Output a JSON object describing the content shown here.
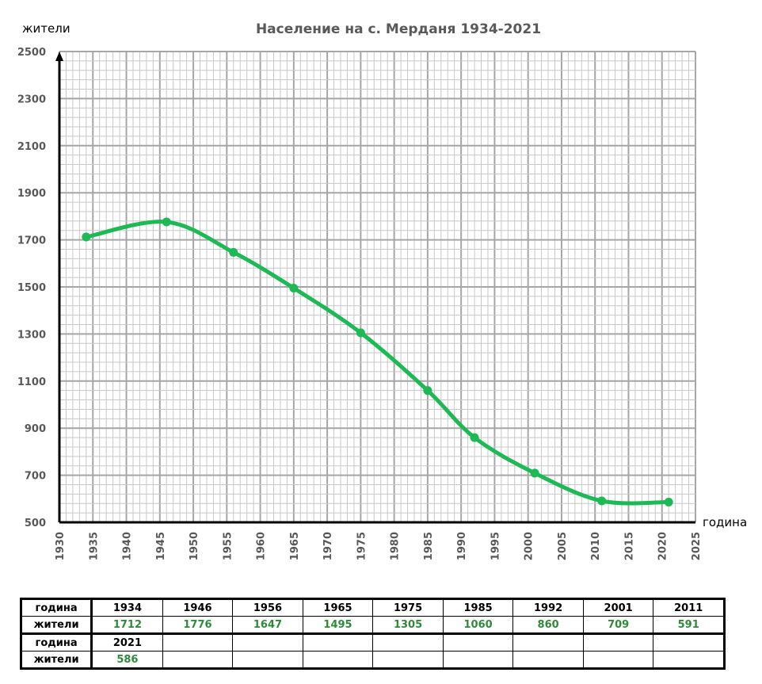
{
  "chart_data": {
    "type": "line",
    "title": "Население на с. Мерданя 1934-2021",
    "xlabel": "година",
    "ylabel": "жители",
    "xlim": [
      1930,
      2025
    ],
    "ylim": [
      500,
      2500
    ],
    "xticks": [
      1930,
      1935,
      1940,
      1945,
      1950,
      1955,
      1960,
      1965,
      1970,
      1975,
      1980,
      1985,
      1990,
      1995,
      2000,
      2005,
      2010,
      2015,
      2020,
      2025
    ],
    "yticks": [
      500,
      700,
      900,
      1100,
      1300,
      1500,
      1700,
      1900,
      2100,
      2300,
      2500
    ],
    "grid": true,
    "x": [
      1934,
      1946,
      1956,
      1965,
      1975,
      1985,
      1992,
      2001,
      2011,
      2021
    ],
    "y": [
      1712,
      1776,
      1647,
      1495,
      1305,
      1060,
      860,
      709,
      591,
      586
    ],
    "line_color": "#1db954"
  },
  "table": {
    "row_label_year": "година",
    "row_label_pop": "жители",
    "rows": [
      {
        "years": [
          "1934",
          "1946",
          "1956",
          "1965",
          "1975",
          "1985",
          "1992",
          "2001",
          "2011"
        ],
        "pops": [
          "1712",
          "1776",
          "1647",
          "1495",
          "1305",
          "1060",
          "860",
          "709",
          "591"
        ]
      },
      {
        "years": [
          "2021",
          "",
          "",
          "",
          "",
          "",
          "",
          "",
          ""
        ],
        "pops": [
          "586",
          "",
          "",
          "",
          "",
          "",
          "",
          "",
          ""
        ]
      }
    ]
  }
}
